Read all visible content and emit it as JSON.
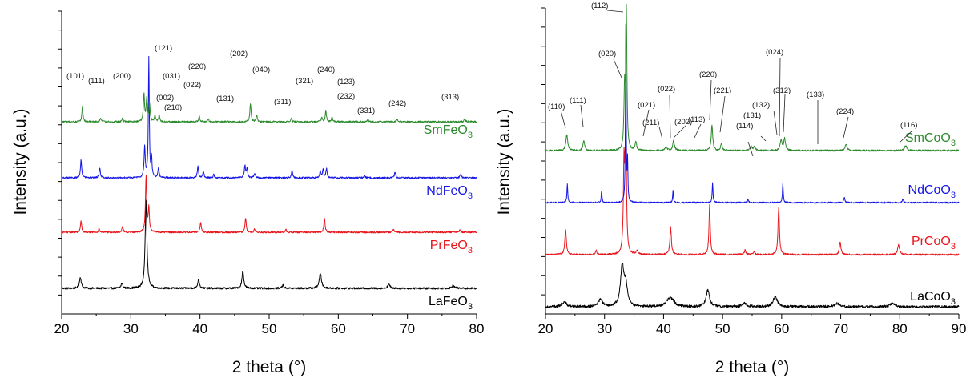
{
  "chart_data": [
    {
      "type": "line",
      "title": "",
      "xlabel": "2 theta (°)",
      "ylabel": "Intensity (a.u.)",
      "xlim": [
        20,
        80
      ],
      "xticks": [
        20,
        30,
        40,
        50,
        60,
        70,
        80
      ],
      "yticks_labeled": false,
      "grid": false,
      "series": [
        {
          "name": "LaFeO3",
          "name_base": "LaFeO",
          "name_sub": "3",
          "color": "#000000",
          "offset": 0,
          "noise": 1.2,
          "peaks": [
            [
              22.7,
              14,
              0.15
            ],
            [
              28.7,
              6,
              0.15
            ],
            [
              32.2,
              112,
              0.15
            ],
            [
              39.8,
              11,
              0.15
            ],
            [
              46.2,
              22,
              0.15
            ],
            [
              52.0,
              4,
              0.15
            ],
            [
              57.4,
              18,
              0.2
            ],
            [
              67.3,
              5,
              0.2
            ],
            [
              76.6,
              4,
              0.2
            ]
          ]
        },
        {
          "name": "PrFeO3",
          "name_base": "PrFeO",
          "name_sub": "3",
          "color": "#e8141b",
          "offset": 70,
          "noise": 1.0,
          "peaks": [
            [
              22.8,
              14,
              0.1
            ],
            [
              25.4,
              4,
              0.1
            ],
            [
              28.8,
              8,
              0.1
            ],
            [
              32.2,
              70,
              0.1
            ],
            [
              32.6,
              30,
              0.1
            ],
            [
              40.1,
              12,
              0.1
            ],
            [
              46.6,
              18,
              0.1
            ],
            [
              47.9,
              4,
              0.1
            ],
            [
              52.4,
              4,
              0.1
            ],
            [
              58.0,
              18,
              0.1
            ],
            [
              68.0,
              4,
              0.1
            ],
            [
              77.6,
              4,
              0.1
            ]
          ]
        },
        {
          "name": "NdFeO3",
          "name_base": "NdFeO",
          "name_sub": "3",
          "color": "#1515e6",
          "offset": 138,
          "noise": 1.0,
          "peaks": [
            [
              22.8,
              22,
              0.1
            ],
            [
              25.5,
              13,
              0.1
            ],
            [
              32.0,
              38,
              0.1
            ],
            [
              32.6,
              150,
              0.08
            ],
            [
              33.0,
              24,
              0.08
            ],
            [
              34.0,
              13,
              0.1
            ],
            [
              39.7,
              15,
              0.1
            ],
            [
              40.5,
              8,
              0.1
            ],
            [
              42.0,
              4,
              0.1
            ],
            [
              46.5,
              15,
              0.1
            ],
            [
              46.8,
              12,
              0.1
            ],
            [
              47.9,
              6,
              0.1
            ],
            [
              53.3,
              10,
              0.1
            ],
            [
              57.4,
              8,
              0.1
            ],
            [
              57.8,
              10,
              0.1
            ],
            [
              58.3,
              12,
              0.1
            ],
            [
              63.8,
              3,
              0.1
            ],
            [
              68.2,
              7,
              0.1
            ],
            [
              77.7,
              5,
              0.1
            ]
          ]
        },
        {
          "name": "SmFeO3",
          "name_base": "SmFeO",
          "name_sub": "3",
          "color": "#2b8a2b",
          "offset": 208,
          "noise": 1.0,
          "peaks": [
            [
              23.0,
              19,
              0.1
            ],
            [
              25.6,
              5,
              0.1
            ],
            [
              28.8,
              4,
              0.1
            ],
            [
              31.9,
              34,
              0.1
            ],
            [
              32.3,
              28,
              0.1
            ],
            [
              32.7,
              22,
              0.1
            ],
            [
              33.5,
              8,
              0.1
            ],
            [
              34.1,
              8,
              0.1
            ],
            [
              39.9,
              7,
              0.1
            ],
            [
              41.2,
              4,
              0.1
            ],
            [
              47.3,
              23,
              0.1
            ],
            [
              48.2,
              8,
              0.1
            ],
            [
              53.2,
              4,
              0.1
            ],
            [
              57.6,
              5,
              0.1
            ],
            [
              58.2,
              14,
              0.1
            ],
            [
              59.1,
              6,
              0.1
            ],
            [
              64.3,
              3,
              0.1
            ],
            [
              68.5,
              3,
              0.1
            ],
            [
              78.3,
              4,
              0.1
            ]
          ]
        }
      ],
      "annotations": [
        "(101)",
        "(111)",
        "(200)",
        "(121)",
        "(002)",
        "(210)",
        "(031)",
        "(220)",
        "(022)",
        "(131)",
        "(202)",
        "(040)",
        "(311)",
        "(321)",
        "(240)",
        "(123)",
        "(232)",
        "(331)",
        "(242)",
        "(313)"
      ]
    },
    {
      "type": "line",
      "title": "",
      "xlabel": "2 theta (°)",
      "ylabel": "Intensity (a.u.)",
      "xlim": [
        20,
        90
      ],
      "xticks": [
        20,
        30,
        40,
        50,
        60,
        70,
        80,
        90
      ],
      "yticks_labeled": false,
      "grid": false,
      "series": [
        {
          "name": "LaCoO3",
          "name_base": "LaCoO",
          "name_sub": "3",
          "color": "#000000",
          "offset": 0,
          "noise": 1.6,
          "peaks": [
            [
              23.2,
              6,
              0.4
            ],
            [
              29.3,
              9,
              0.4
            ],
            [
              33.0,
              50,
              0.35
            ],
            [
              33.6,
              25,
              0.3
            ],
            [
              40.9,
              8,
              0.7
            ],
            [
              41.5,
              5,
              0.5
            ],
            [
              47.5,
              21,
              0.35
            ],
            [
              53.7,
              4,
              0.5
            ],
            [
              58.9,
              13,
              0.4
            ],
            [
              69.4,
              4,
              0.5
            ],
            [
              78.8,
              4,
              0.5
            ]
          ]
        },
        {
          "name": "PrCoO3",
          "name_base": "PrCoO",
          "name_sub": "3",
          "color": "#e8141b",
          "offset": 67,
          "noise": 1.0,
          "peaks": [
            [
              23.4,
              32,
              0.15
            ],
            [
              28.6,
              5,
              0.15
            ],
            [
              33.3,
              110,
              0.13
            ],
            [
              33.6,
              170,
              0.12
            ],
            [
              35.5,
              4,
              0.2
            ],
            [
              41.2,
              34,
              0.15
            ],
            [
              47.8,
              62,
              0.13
            ],
            [
              53.8,
              6,
              0.15
            ],
            [
              55.3,
              4,
              0.15
            ],
            [
              59.5,
              60,
              0.14
            ],
            [
              69.9,
              16,
              0.15
            ],
            [
              79.8,
              12,
              0.2
            ]
          ]
        },
        {
          "name": "NdCoO3",
          "name_base": "NdCoO",
          "name_sub": "3",
          "color": "#1515e6",
          "offset": 130,
          "noise": 0.9,
          "peaks": [
            [
              23.7,
              24,
              0.08
            ],
            [
              29.5,
              15,
              0.08
            ],
            [
              33.6,
              220,
              0.07
            ],
            [
              33.9,
              50,
              0.07
            ],
            [
              41.6,
              15,
              0.08
            ],
            [
              48.3,
              25,
              0.08
            ],
            [
              54.3,
              4,
              0.1
            ],
            [
              60.2,
              25,
              0.08
            ],
            [
              70.6,
              7,
              0.1
            ],
            [
              80.5,
              5,
              0.1
            ]
          ]
        },
        {
          "name": "SmCoO3",
          "name_base": "SmCoO",
          "name_sub": "3",
          "color": "#2b8a2b",
          "offset": 195,
          "noise": 1.0,
          "peaks": [
            [
              23.6,
              20,
              0.18
            ],
            [
              26.5,
              12,
              0.18
            ],
            [
              33.4,
              75,
              0.13
            ],
            [
              33.7,
              170,
              0.11
            ],
            [
              35.3,
              11,
              0.15
            ],
            [
              40.4,
              5,
              0.2
            ],
            [
              41.7,
              12,
              0.18
            ],
            [
              48.2,
              32,
              0.15
            ],
            [
              49.8,
              9,
              0.15
            ],
            [
              54.8,
              5,
              0.2
            ],
            [
              55.4,
              5,
              0.2
            ],
            [
              59.9,
              12,
              0.18
            ],
            [
              60.5,
              15,
              0.18
            ],
            [
              70.9,
              8,
              0.2
            ],
            [
              81.0,
              6,
              0.25
            ]
          ]
        }
      ],
      "annotations": [
        "(112)",
        "(020)",
        "(110)",
        "(111)",
        "(021)",
        "(211)",
        "(022)",
        "(202)",
        "(113)",
        "(220)",
        "(221)",
        "(114)",
        "(131)",
        "(132)",
        "(024)",
        "(312)",
        "(133)",
        "(224)",
        "(116)"
      ]
    }
  ]
}
